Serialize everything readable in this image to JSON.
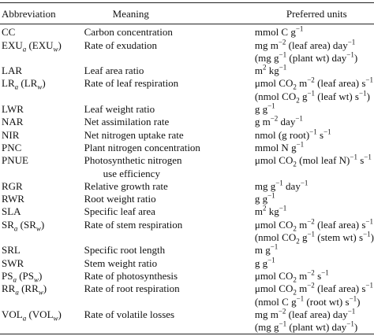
{
  "header": {
    "abbreviation": "Abbreviation",
    "meaning": "Meaning",
    "units": "Preferred units"
  },
  "rows": [
    {
      "abbr": [
        [
          "CC"
        ]
      ],
      "meaning": [
        [
          "Carbon concentration"
        ]
      ],
      "units": [
        [
          "mmol C g",
          {
            "sup": "−1"
          }
        ]
      ]
    },
    {
      "abbr": [
        [
          "EXU",
          {
            "isub": "a"
          },
          " (EXU",
          {
            "isub": "w"
          },
          ")"
        ]
      ],
      "meaning": [
        [
          "Rate of exudation"
        ]
      ],
      "units": [
        [
          "mg m",
          {
            "sup": "−2"
          },
          " (leaf area) day",
          {
            "sup": "−1"
          }
        ],
        [
          "(mg g",
          {
            "sup": "−1"
          },
          " (plant wt) day",
          {
            "sup": "−1"
          },
          ")"
        ]
      ]
    },
    {
      "abbr": [
        [
          "LAR"
        ]
      ],
      "meaning": [
        [
          "Leaf area ratio"
        ]
      ],
      "units": [
        [
          "m",
          {
            "sup": "2"
          },
          " kg",
          {
            "sup": "−1"
          }
        ]
      ]
    },
    {
      "abbr": [
        [
          "LR",
          {
            "isub": "a"
          },
          " (LR",
          {
            "isub": "w"
          },
          ")"
        ]
      ],
      "meaning": [
        [
          "Rate of leaf respiration"
        ]
      ],
      "units": [
        [
          "μmol CO",
          {
            "sub": "2"
          },
          " m",
          {
            "sup": "−2"
          },
          " (leaf area) s",
          {
            "sup": "−1"
          }
        ],
        [
          "(nmol CO",
          {
            "sub": "2"
          },
          " g",
          {
            "sup": "−1"
          },
          " (leaf wt) s",
          {
            "sup": "−1"
          },
          ")"
        ]
      ]
    },
    {
      "abbr": [
        [
          "LWR"
        ]
      ],
      "meaning": [
        [
          "Leaf weight ratio"
        ]
      ],
      "units": [
        [
          "g g",
          {
            "sup": "−1"
          }
        ]
      ]
    },
    {
      "abbr": [
        [
          "NAR"
        ]
      ],
      "meaning": [
        [
          "Net assimilation rate"
        ]
      ],
      "units": [
        [
          "g m",
          {
            "sup": "−2"
          },
          " day",
          {
            "sup": "−1"
          }
        ]
      ]
    },
    {
      "abbr": [
        [
          "NIR"
        ]
      ],
      "meaning": [
        [
          "Net nitrogen uptake rate"
        ]
      ],
      "units": [
        [
          "nmol (g root)",
          {
            "sup": "−1"
          },
          " s",
          {
            "sup": "−1"
          }
        ]
      ]
    },
    {
      "abbr": [
        [
          "PNC"
        ]
      ],
      "meaning": [
        [
          "Plant nitrogen concentration"
        ]
      ],
      "units": [
        [
          "mmol N g",
          {
            "sup": "−1"
          }
        ]
      ]
    },
    {
      "abbr": [
        [
          "PNUE"
        ]
      ],
      "meaning": [
        [
          "Photosynthetic nitrogen"
        ],
        [
          "use efficiency"
        ]
      ],
      "units": [
        [
          "μmol CO",
          {
            "sub": "2"
          },
          " (mol leaf N)",
          {
            "sup": "−1"
          },
          " s",
          {
            "sup": "−1"
          }
        ]
      ]
    },
    {
      "abbr": [
        [
          "RGR"
        ]
      ],
      "meaning": [
        [
          "Relative growth rate"
        ]
      ],
      "units": [
        [
          "mg g",
          {
            "sup": "−1"
          },
          " day",
          {
            "sup": "−1"
          }
        ]
      ]
    },
    {
      "abbr": [
        [
          "RWR"
        ]
      ],
      "meaning": [
        [
          "Root weight ratio"
        ]
      ],
      "units": [
        [
          "g g",
          {
            "sup": "−1"
          }
        ]
      ]
    },
    {
      "abbr": [
        [
          "SLA"
        ]
      ],
      "meaning": [
        [
          "Specific leaf area"
        ]
      ],
      "units": [
        [
          "m",
          {
            "sup": "2"
          },
          " kg",
          {
            "sup": "−1"
          }
        ]
      ]
    },
    {
      "abbr": [
        [
          "SR",
          {
            "isub": "a"
          },
          " (SR",
          {
            "isub": "w"
          },
          ")"
        ]
      ],
      "meaning": [
        [
          "Rate of stem respiration"
        ]
      ],
      "units": [
        [
          "μmol CO",
          {
            "sub": "2"
          },
          " m",
          {
            "sup": "−2"
          },
          " (leaf area) s",
          {
            "sup": "−1"
          }
        ],
        [
          "(nmol CO",
          {
            "sub": "2"
          },
          " g",
          {
            "sup": "−1"
          },
          " (stem wt) s",
          {
            "sup": "−1"
          },
          ")"
        ]
      ]
    },
    {
      "abbr": [
        [
          "SRL"
        ]
      ],
      "meaning": [
        [
          "Specific root length"
        ]
      ],
      "units": [
        [
          "m g",
          {
            "sup": "−1"
          }
        ]
      ]
    },
    {
      "abbr": [
        [
          "SWR"
        ]
      ],
      "meaning": [
        [
          "Stem weight ratio"
        ]
      ],
      "units": [
        [
          "g g",
          {
            "sup": "−1"
          }
        ]
      ]
    },
    {
      "abbr": [
        [
          "PS",
          {
            "isub": "a"
          },
          " (PS",
          {
            "isub": "w"
          },
          ")"
        ]
      ],
      "meaning": [
        [
          "Rate of photosynthesis"
        ]
      ],
      "units": [
        [
          "μmol CO",
          {
            "sub": "2"
          },
          " m",
          {
            "sup": "−2"
          },
          " s",
          {
            "sup": "−1"
          }
        ]
      ]
    },
    {
      "abbr": [
        [
          "RR",
          {
            "isub": "a"
          },
          " (RR",
          {
            "isub": "w"
          },
          ")"
        ]
      ],
      "meaning": [
        [
          "Rate of root respiration"
        ]
      ],
      "units": [
        [
          "μmol CO",
          {
            "sub": "2"
          },
          " m",
          {
            "sup": "−2"
          },
          " (leaf area) s",
          {
            "sup": "−1"
          }
        ],
        [
          "(nmol C g",
          {
            "sup": "−1"
          },
          " (root wt) s",
          {
            "sup": "−1"
          },
          ")"
        ]
      ]
    },
    {
      "abbr": [
        [
          "VOL",
          {
            "isub": "a"
          },
          " (VOL",
          {
            "isub": "w"
          },
          ")"
        ]
      ],
      "meaning": [
        [
          "Rate of volatile losses"
        ]
      ],
      "units": [
        [
          "mg m",
          {
            "sup": "−2"
          },
          " (leaf area) day",
          {
            "sup": "−1"
          }
        ],
        [
          "(mg g",
          {
            "sup": "−1"
          },
          " (plant wt) day",
          {
            "sup": "−1"
          },
          ")"
        ]
      ]
    }
  ]
}
